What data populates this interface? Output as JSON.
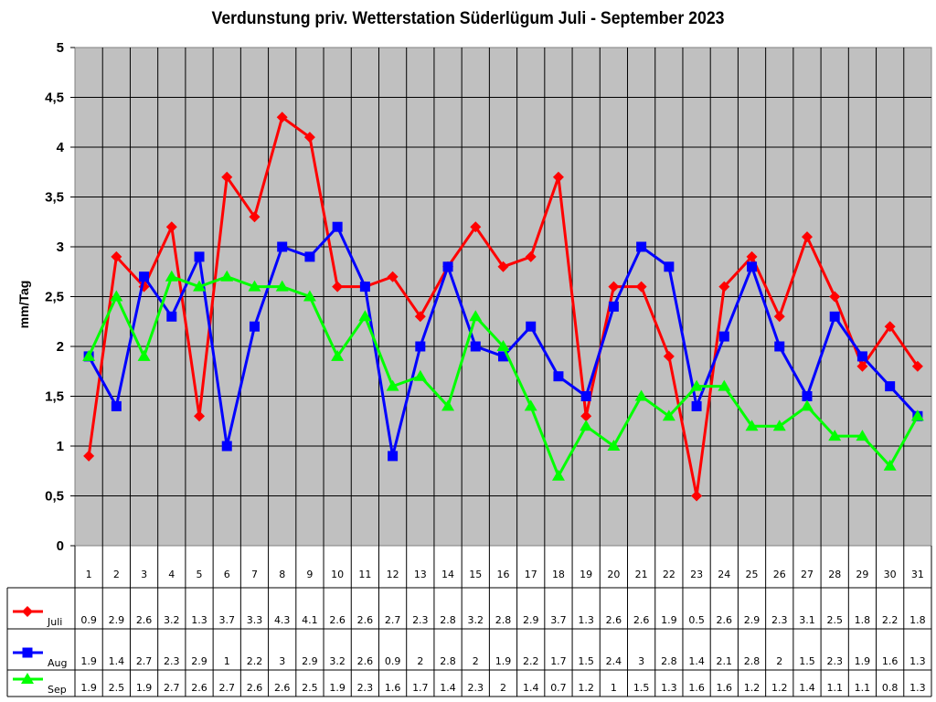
{
  "chart_data": {
    "type": "line",
    "title": "Verdunstung priv. Wetterstation Süderlügum Juli - September 2023",
    "xlabel": "",
    "ylabel": "mm/Tag",
    "ylim": [
      0,
      5
    ],
    "yticks": [
      "0",
      "0,5",
      "1",
      "1,5",
      "2",
      "2,5",
      "3",
      "3,5",
      "4",
      "4,5",
      "5"
    ],
    "grid": true,
    "legend_position": "data-table-left",
    "categories": [
      "1",
      "2",
      "3",
      "4",
      "5",
      "6",
      "7",
      "8",
      "9",
      "10",
      "11",
      "12",
      "13",
      "14",
      "15",
      "16",
      "17",
      "18",
      "19",
      "20",
      "21",
      "22",
      "23",
      "24",
      "25",
      "26",
      "27",
      "28",
      "29",
      "30",
      "31"
    ],
    "series": [
      {
        "name": "Juli",
        "color": "#ff0000",
        "marker": "diamond",
        "values": [
          0.9,
          2.9,
          2.6,
          3.2,
          1.3,
          3.7,
          3.3,
          4.3,
          4.1,
          2.6,
          2.6,
          2.7,
          2.3,
          2.8,
          3.2,
          2.8,
          2.9,
          3.7,
          1.3,
          2.6,
          2.6,
          1.9,
          0.5,
          2.6,
          2.9,
          2.3,
          3.1,
          2.5,
          1.8,
          2.2,
          1.8
        ]
      },
      {
        "name": "Aug",
        "color": "#0000ff",
        "marker": "square",
        "values": [
          1.9,
          1.4,
          2.7,
          2.3,
          2.9,
          1,
          2.2,
          3,
          2.9,
          3.2,
          2.6,
          0.9,
          2,
          2.8,
          2,
          1.9,
          2.2,
          1.7,
          1.5,
          2.4,
          3,
          2.8,
          1.4,
          2.1,
          2.8,
          2,
          1.5,
          2.3,
          1.9,
          1.6,
          1.3
        ]
      },
      {
        "name": "Sep",
        "color": "#00ff00",
        "marker": "triangle",
        "values": [
          1.9,
          2.5,
          1.9,
          2.7,
          2.6,
          2.7,
          2.6,
          2.6,
          2.5,
          1.9,
          2.3,
          1.6,
          1.7,
          1.4,
          2.3,
          2,
          1.4,
          0.7,
          1.2,
          1,
          1.5,
          1.3,
          1.6,
          1.6,
          1.2,
          1.2,
          1.4,
          1.1,
          1.1,
          0.8,
          1.3
        ]
      }
    ],
    "plot_background": "#c0c0c0"
  }
}
